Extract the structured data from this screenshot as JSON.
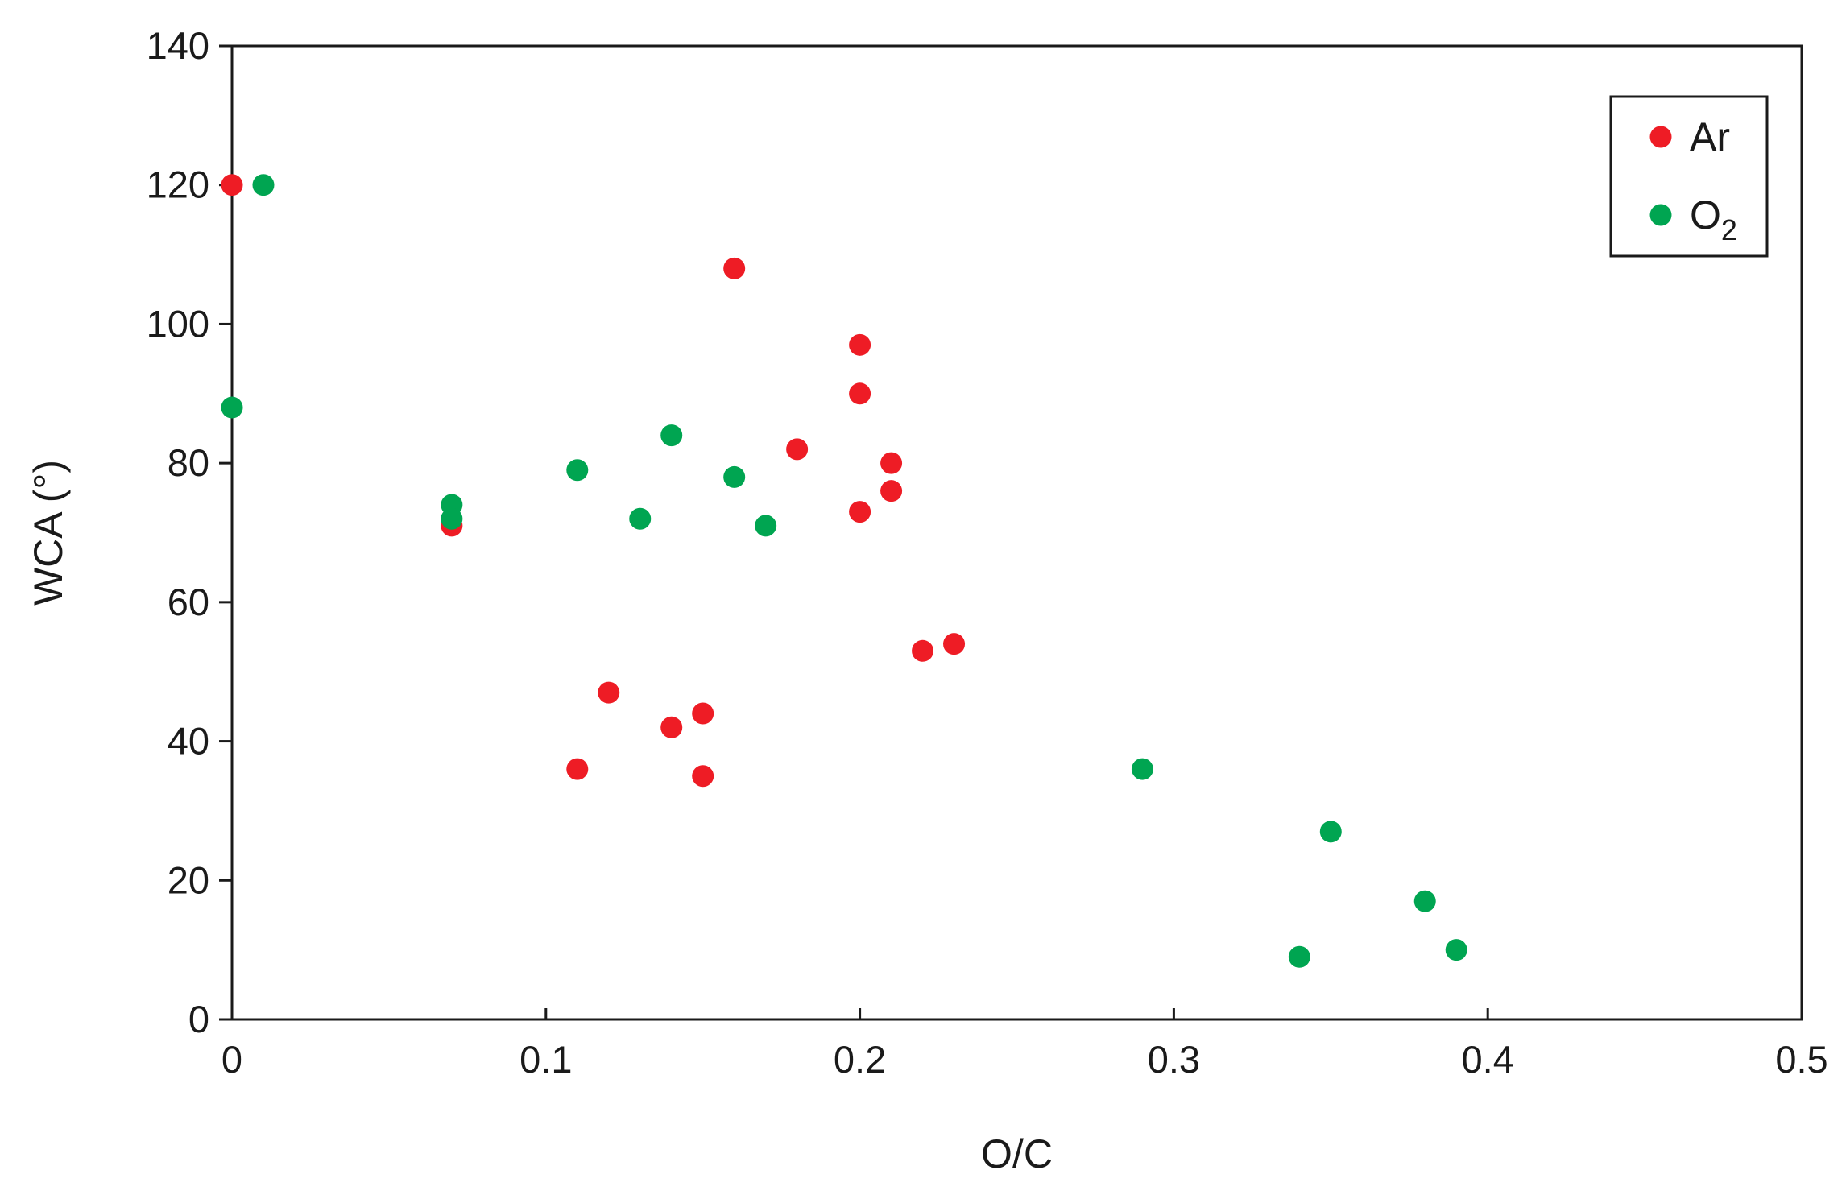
{
  "chart_data": {
    "type": "scatter",
    "title": "",
    "xlabel": "O/C",
    "ylabel": "WCA (°)",
    "xlim": [
      0,
      0.5
    ],
    "ylim": [
      0,
      140
    ],
    "xticks": [
      0,
      0.1,
      0.2,
      0.3,
      0.4,
      0.5
    ],
    "xtick_labels": [
      "0",
      "0.1",
      "0.2",
      "0.3",
      "0.4",
      "0.5"
    ],
    "yticks": [
      0,
      20,
      40,
      60,
      80,
      100,
      120,
      140
    ],
    "ytick_labels": [
      "0",
      "20",
      "40",
      "60",
      "80",
      "100",
      "120",
      "140"
    ],
    "grid": false,
    "legend_position": "top-right",
    "series": [
      {
        "name": "Ar",
        "legend_main": "Ar",
        "legend_sub": "",
        "color": "#ee1c25",
        "points": [
          [
            0,
            120
          ],
          [
            0.16,
            108
          ],
          [
            0.2,
            97
          ],
          [
            0.2,
            90
          ],
          [
            0.18,
            82
          ],
          [
            0.21,
            80
          ],
          [
            0.21,
            76
          ],
          [
            0.2,
            73
          ],
          [
            0.07,
            71
          ],
          [
            0.22,
            53
          ],
          [
            0.23,
            54
          ],
          [
            0.12,
            47
          ],
          [
            0.15,
            44
          ],
          [
            0.14,
            42
          ],
          [
            0.11,
            36
          ],
          [
            0.15,
            35
          ]
        ]
      },
      {
        "name": "O2",
        "legend_main": "O",
        "legend_sub": "2",
        "color": "#00a551",
        "points": [
          [
            0.01,
            120
          ],
          [
            0,
            88
          ],
          [
            0.14,
            84
          ],
          [
            0.11,
            79
          ],
          [
            0.16,
            78
          ],
          [
            0.07,
            74
          ],
          [
            0.07,
            72
          ],
          [
            0.13,
            72
          ],
          [
            0.17,
            71
          ],
          [
            0.29,
            36
          ],
          [
            0.35,
            27
          ],
          [
            0.38,
            17
          ],
          [
            0.39,
            10
          ],
          [
            0.34,
            9
          ]
        ]
      }
    ]
  }
}
